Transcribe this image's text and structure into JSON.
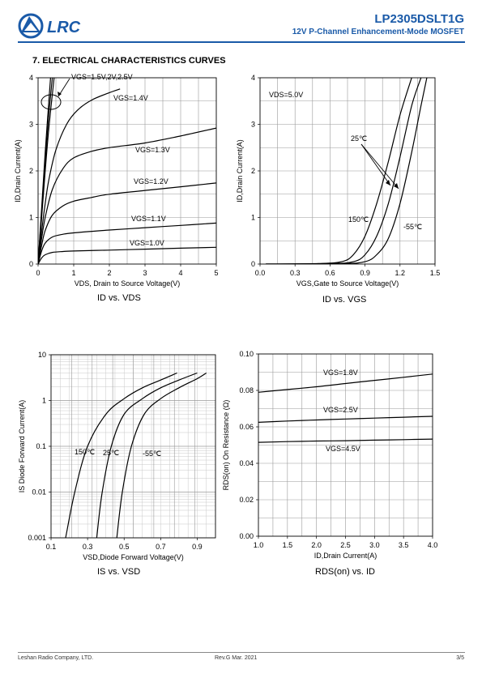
{
  "header": {
    "part_number": "LP2305DSLT1G",
    "subtitle": "12V P-Channel Enhancement-Mode MOSFET",
    "logo_text": "LRC",
    "brand_color": "#1a5aa8"
  },
  "section_title": "7. ELECTRICAL CHARACTERISTICS CURVES",
  "footer": {
    "company": "Leshan Radio Company, LTD.",
    "revision": "Rev.G   Mar.   2021",
    "page": "3/5"
  },
  "chart_data": [
    {
      "type": "line",
      "caption": "ID vs. VDS",
      "xlabel": "VDS,  Drain to Source Voltage(V)",
      "ylabel": "ID,Drain Current(A)",
      "xlim": [
        0,
        5
      ],
      "ylim": [
        0,
        4
      ],
      "xticks": [
        0,
        1,
        2,
        3,
        4,
        5
      ],
      "yticks": [
        0,
        1,
        2,
        3,
        4
      ],
      "grid": true,
      "series": [
        {
          "name": "VGS=1.0V",
          "x": [
            0,
            0.1,
            0.2,
            0.4,
            0.7,
            1.0,
            2.0,
            3.0,
            4.0,
            5.0
          ],
          "y": [
            0,
            0.13,
            0.2,
            0.25,
            0.27,
            0.28,
            0.3,
            0.32,
            0.34,
            0.36
          ]
        },
        {
          "name": "VGS=1.1V",
          "x": [
            0,
            0.1,
            0.2,
            0.4,
            0.7,
            1.0,
            2.0,
            3.0,
            4.0,
            5.0
          ],
          "y": [
            0,
            0.28,
            0.45,
            0.58,
            0.64,
            0.67,
            0.73,
            0.78,
            0.83,
            0.88
          ]
        },
        {
          "name": "VGS=1.2V",
          "x": [
            0,
            0.1,
            0.2,
            0.4,
            0.7,
            1.0,
            1.5,
            2.0,
            3.0,
            4.0,
            5.0
          ],
          "y": [
            0,
            0.4,
            0.72,
            1.05,
            1.25,
            1.35,
            1.43,
            1.5,
            1.58,
            1.66,
            1.74
          ]
        },
        {
          "name": "VGS=1.3V",
          "x": [
            0,
            0.1,
            0.2,
            0.4,
            0.7,
            1.0,
            1.5,
            2.0,
            3.0,
            4.0,
            5.0
          ],
          "y": [
            0,
            0.55,
            1.0,
            1.6,
            2.05,
            2.28,
            2.42,
            2.5,
            2.6,
            2.75,
            2.92
          ]
        },
        {
          "name": "VGS=1.4V",
          "x": [
            0,
            0.1,
            0.2,
            0.3,
            0.5,
            0.8,
            1.1,
            1.5,
            2.0,
            2.3
          ],
          "y": [
            0,
            0.7,
            1.3,
            1.8,
            2.45,
            3.0,
            3.3,
            3.52,
            3.68,
            3.76
          ]
        },
        {
          "name": "VGS=1.5V",
          "x": [
            0,
            0.1,
            0.2,
            0.3,
            0.45
          ],
          "y": [
            0,
            1.0,
            2.0,
            2.9,
            4.0
          ]
        },
        {
          "name": "VGS=2V",
          "x": [
            0,
            0.1,
            0.2,
            0.3,
            0.4
          ],
          "y": [
            0,
            1.1,
            2.2,
            3.2,
            4.0
          ]
        },
        {
          "name": "VGS=2.5V",
          "x": [
            0,
            0.1,
            0.2,
            0.35
          ],
          "y": [
            0,
            1.2,
            2.4,
            4.0
          ]
        }
      ],
      "annotations": [
        "VGS=1.5V,2V,2.5V",
        "VGS=1.4V",
        "VGS=1.3V",
        "VGS=1.2V",
        "VGS=1.1V",
        "VGS=1.0V"
      ]
    },
    {
      "type": "line",
      "caption": "ID vs. VGS",
      "xlabel": "VGS,Gate to Source Voltage(V)",
      "ylabel": "ID,Drain Current(A)",
      "xlim": [
        0.0,
        1.5
      ],
      "ylim": [
        0,
        4
      ],
      "xticks": [
        0.0,
        0.3,
        0.6,
        0.9,
        1.2,
        1.5
      ],
      "yticks": [
        0,
        1,
        2,
        3,
        4
      ],
      "grid": true,
      "series": [
        {
          "name": "150℃",
          "x": [
            0.05,
            0.5,
            0.7,
            0.8,
            0.9,
            1.0,
            1.1,
            1.2,
            1.3
          ],
          "y": [
            0,
            0.01,
            0.05,
            0.2,
            0.6,
            1.3,
            2.2,
            3.2,
            4.0
          ]
        },
        {
          "name": "25℃",
          "x": [
            0.05,
            0.6,
            0.8,
            0.9,
            1.0,
            1.1,
            1.2,
            1.3,
            1.38
          ],
          "y": [
            0,
            0.01,
            0.05,
            0.2,
            0.6,
            1.3,
            2.3,
            3.4,
            4.0
          ]
        },
        {
          "name": "-55℃",
          "x": [
            0.05,
            0.7,
            0.9,
            1.0,
            1.1,
            1.2,
            1.3,
            1.38,
            1.43
          ],
          "y": [
            0,
            0.01,
            0.05,
            0.2,
            0.55,
            1.3,
            2.4,
            3.4,
            4.0
          ]
        }
      ],
      "annotations": [
        "VDS=5.0V",
        "25℃",
        "150℃",
        "-55℃"
      ]
    },
    {
      "type": "line",
      "caption": "IS vs. VSD",
      "xlabel": "VSD,Diode Forward Voltage(V)",
      "ylabel": "IS Diode Forward Current(A)",
      "xlim": [
        0.1,
        1.0
      ],
      "ylim": [
        0.001,
        10
      ],
      "yscale": "log",
      "xticks": [
        0.1,
        0.3,
        0.5,
        0.7,
        0.9
      ],
      "yticks": [
        0.001,
        0.01,
        0.1,
        1,
        10
      ],
      "ytick_labels": [
        "0.001",
        "0.01",
        "0.1",
        "1",
        "10"
      ],
      "grid": true,
      "series": [
        {
          "name": "150℃",
          "x": [
            0.18,
            0.23,
            0.3,
            0.4,
            0.5,
            0.6,
            0.7,
            0.79
          ],
          "y": [
            0.001,
            0.01,
            0.1,
            0.5,
            1.1,
            1.9,
            2.8,
            4.0
          ]
        },
        {
          "name": "25℃",
          "x": [
            0.35,
            0.38,
            0.43,
            0.5,
            0.6,
            0.7,
            0.8,
            0.9
          ],
          "y": [
            0.001,
            0.01,
            0.1,
            0.5,
            1.1,
            1.9,
            2.8,
            4.0
          ]
        },
        {
          "name": "-55℃",
          "x": [
            0.46,
            0.49,
            0.54,
            0.61,
            0.7,
            0.8,
            0.9,
            0.95
          ],
          "y": [
            0.001,
            0.01,
            0.1,
            0.5,
            1.1,
            1.9,
            3.0,
            4.0
          ]
        }
      ],
      "annotations": [
        "150℃",
        "25℃",
        "-55℃"
      ]
    },
    {
      "type": "line",
      "caption": "RDS(on) vs. ID",
      "xlabel": "ID,Drain Current(A)",
      "ylabel": "RDS(on) On Resistance (Ω)",
      "xlim": [
        1.0,
        4.0
      ],
      "ylim": [
        0.0,
        0.1
      ],
      "xticks": [
        1.0,
        1.5,
        2.0,
        2.5,
        3.0,
        3.5,
        4.0
      ],
      "yticks": [
        0.0,
        0.02,
        0.04,
        0.06,
        0.08,
        0.1
      ],
      "ytick_labels": [
        "0.00",
        "0.02",
        "0.04",
        "0.06",
        "0.08",
        "0.10"
      ],
      "grid": true,
      "series": [
        {
          "name": "VGS=1.8V",
          "x": [
            1.0,
            1.5,
            2.0,
            2.5,
            3.0,
            3.5,
            4.0
          ],
          "y": [
            0.079,
            0.0805,
            0.082,
            0.0838,
            0.0855,
            0.0872,
            0.089
          ]
        },
        {
          "name": "VGS=2.5V",
          "x": [
            1.0,
            1.5,
            2.0,
            2.5,
            3.0,
            3.5,
            4.0
          ],
          "y": [
            0.0625,
            0.0632,
            0.0638,
            0.0643,
            0.0648,
            0.0653,
            0.0658
          ]
        },
        {
          "name": "VGS=4.5V",
          "x": [
            1.0,
            1.5,
            2.0,
            2.5,
            3.0,
            3.5,
            4.0
          ],
          "y": [
            0.0515,
            0.0519,
            0.0522,
            0.0524,
            0.0527,
            0.053,
            0.0533
          ]
        }
      ],
      "annotations": [
        "VGS=1.8V",
        "VGS=2.5V",
        "VGS=4.5V"
      ]
    }
  ]
}
